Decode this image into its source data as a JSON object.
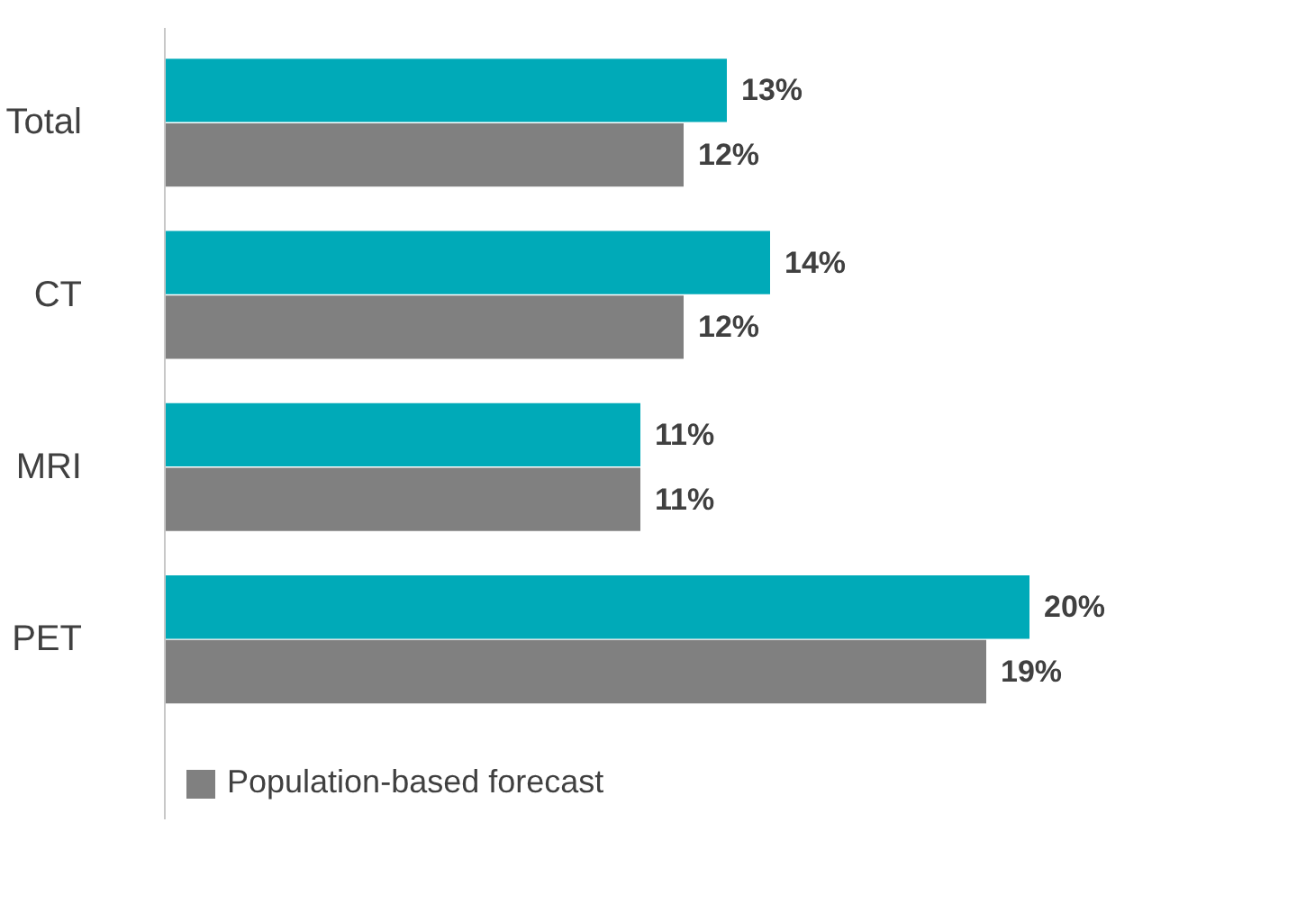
{
  "chart_data": {
    "type": "bar",
    "orientation": "horizontal",
    "categories": [
      "Total",
      "CT",
      "MRI",
      "PET"
    ],
    "series": [
      {
        "color": "#00aab8",
        "values": [
          13,
          14,
          11,
          20
        ],
        "value_labels": [
          "13%",
          "14%",
          "11%",
          "20%"
        ]
      },
      {
        "name": "Population-based forecast",
        "color": "#808080",
        "values": [
          12,
          12,
          11,
          19
        ],
        "value_labels": [
          "12%",
          "12%",
          "11%",
          "19%"
        ]
      }
    ],
    "tick_labels": "y",
    "grid": false,
    "legend": "bottom"
  }
}
